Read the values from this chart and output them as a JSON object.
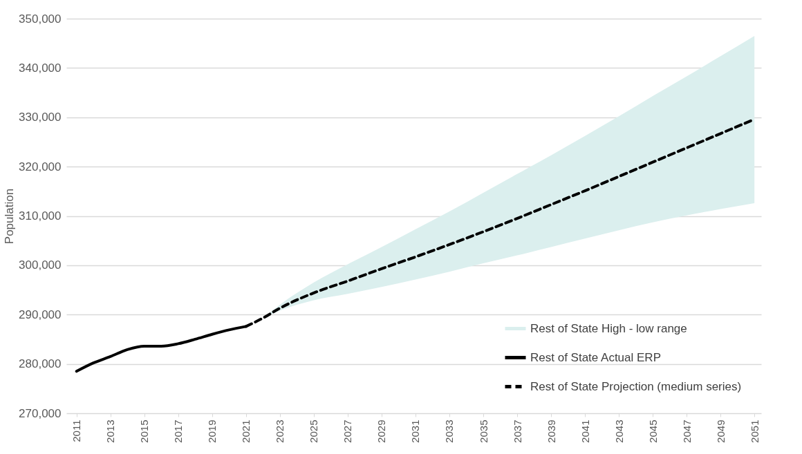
{
  "chart_data": {
    "type": "line",
    "ylabel": "Population",
    "xlim": [
      2010.4,
      2051.4
    ],
    "xticks": [
      2011,
      2013,
      2015,
      2017,
      2019,
      2021,
      2023,
      2025,
      2027,
      2029,
      2031,
      2033,
      2035,
      2037,
      2039,
      2041,
      2043,
      2045,
      2047,
      2049,
      2051
    ],
    "ylim": [
      270000,
      350000
    ],
    "yticks": [
      {
        "value": 270000,
        "label": "270,000"
      },
      {
        "value": 280000,
        "label": "280,000"
      },
      {
        "value": 290000,
        "label": "290,000"
      },
      {
        "value": 300000,
        "label": "300,000"
      },
      {
        "value": 310000,
        "label": "310,000"
      },
      {
        "value": 320000,
        "label": "320,000"
      },
      {
        "value": 330000,
        "label": "330,000"
      },
      {
        "value": 340000,
        "label": "340,000"
      },
      {
        "value": 350000,
        "label": "350,000"
      }
    ],
    "grid": "y",
    "legend": "bottom right",
    "series": [
      {
        "name": "Rest of State High - low range",
        "type": "area",
        "color": "#dbefee",
        "x": [
          2022,
          2023,
          2025,
          2027,
          2029,
          2031,
          2033,
          2035,
          2037,
          2039,
          2041,
          2043,
          2045,
          2047,
          2049,
          2051
        ],
        "values": [
          null,
          null,
          null,
          null,
          null,
          null,
          null,
          null,
          null,
          null,
          null,
          null,
          null,
          null,
          null,
          null
        ],
        "lower": [
          289300,
          290800,
          292900,
          294200,
          295600,
          297100,
          298700,
          300400,
          302000,
          303700,
          305400,
          307100,
          308700,
          310100,
          311400,
          312600
        ],
        "upper": [
          289300,
          292000,
          296500,
          300200,
          303700,
          307300,
          310900,
          314700,
          318500,
          322300,
          326200,
          330200,
          334300,
          338300,
          342400,
          346500
        ]
      },
      {
        "name": "Rest of State Actual ERP",
        "color": "#000000",
        "line_style": "solid",
        "x": [
          2011,
          2012,
          2013,
          2014,
          2015,
          2016,
          2017,
          2018,
          2019,
          2020,
          2021
        ],
        "values": [
          278500,
          280200,
          281500,
          282900,
          283600,
          283600,
          284100,
          285000,
          286000,
          286900,
          287600
        ]
      },
      {
        "name": "Rest of State Projection (medium series)",
        "color": "#000000",
        "line_style": "dashed",
        "x": [
          2021,
          2022,
          2023,
          2025,
          2027,
          2029,
          2031,
          2033,
          2035,
          2037,
          2039,
          2041,
          2043,
          2045,
          2047,
          2049,
          2051
        ],
        "values": [
          287600,
          289300,
          291300,
          294400,
          296800,
          299300,
          301700,
          304200,
          306800,
          309500,
          312300,
          315100,
          318000,
          320900,
          323800,
          326700,
          329600
        ]
      }
    ]
  }
}
